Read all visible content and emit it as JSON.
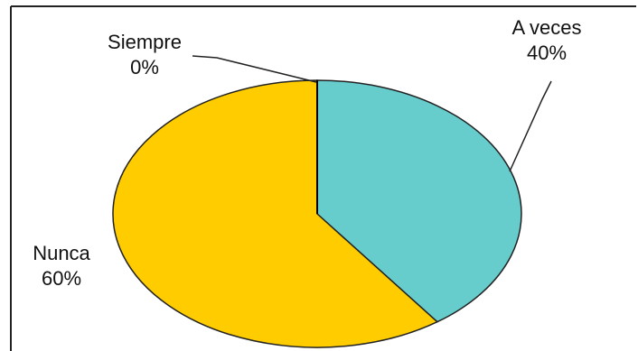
{
  "chart_data": {
    "type": "pie",
    "slices": [
      {
        "label": "A veces",
        "percent_label": "40%",
        "value": 40,
        "color": "#66CCCC"
      },
      {
        "label": "Nunca",
        "percent_label": "60%",
        "value": 60,
        "color": "#FFCC00"
      },
      {
        "label": "Siempre",
        "percent_label": "0%",
        "value": 0,
        "color": "#000000"
      }
    ],
    "start_angle": "12 o'clock",
    "direction": "clockwise",
    "legend": "none (labels with leader lines)",
    "frame": "top and left border lines"
  }
}
